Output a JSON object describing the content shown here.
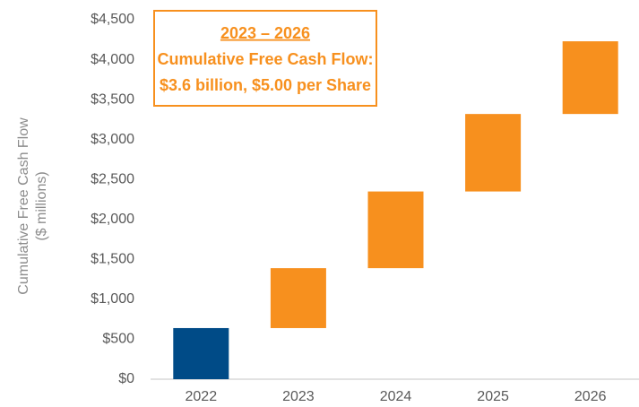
{
  "chart_data": {
    "type": "waterfall",
    "y_axis_label": [
      "Cumulative Free Cash Flow",
      "($ millions)"
    ],
    "annotation": [
      "2023 – 2026",
      "Cumulative Free Cash Flow:",
      "$3.6 billion, $5.00 per Share"
    ],
    "categories": [
      "2022",
      "2023",
      "2024",
      "2025",
      "2026"
    ],
    "values": [
      640,
      750,
      960,
      970,
      910
    ],
    "colors": [
      "#004b87",
      "#f7901e",
      "#f7901e",
      "#f7901e",
      "#f7901e"
    ],
    "ylim": [
      0,
      4500
    ],
    "yticks": [
      {
        "value": 0,
        "label": "$0"
      },
      {
        "value": 500,
        "label": "$500"
      },
      {
        "value": 1000,
        "label": "$1,000"
      },
      {
        "value": 1500,
        "label": "$1,500"
      },
      {
        "value": 2000,
        "label": "$2,000"
      },
      {
        "value": 2500,
        "label": "$2,500"
      },
      {
        "value": 3000,
        "label": "$3,000"
      },
      {
        "value": 3500,
        "label": "$3,500"
      },
      {
        "value": 4000,
        "label": "$4,000"
      },
      {
        "value": 4500,
        "label": "$4,500"
      }
    ],
    "grid": false
  }
}
